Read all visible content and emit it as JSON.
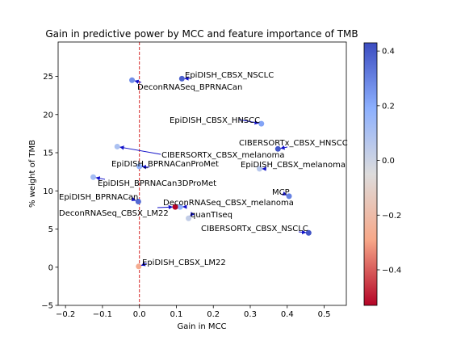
{
  "chart_data": {
    "type": "scatter",
    "title": "Gain in predictive power by MCC and feature importance of TMB",
    "xlabel": "Gain in MCC",
    "ylabel": "% weight of TMB",
    "xlim": [
      -0.22,
      0.56
    ],
    "ylim": [
      -5,
      29.5
    ],
    "xticks": [
      "−0.2",
      "−0.1",
      "0.0",
      "0.1",
      "0.2",
      "0.3",
      "0.4",
      "0.5"
    ],
    "xtick_values": [
      -0.2,
      -0.1,
      0.0,
      0.1,
      0.2,
      0.3,
      0.4,
      0.5
    ],
    "yticks": [
      "−5",
      "0",
      "5",
      "10",
      "15",
      "20",
      "25"
    ],
    "ytick_values": [
      -5,
      0,
      5,
      10,
      15,
      20,
      25
    ],
    "reference_line": {
      "axis": "x",
      "value": 0.0,
      "color": "#d62728",
      "style": "dashed"
    },
    "colorbar": {
      "colormap": "coolwarm",
      "vmin": -0.53,
      "vmax": 0.43,
      "ticks": [
        "−0.4",
        "−0.2",
        "0.0",
        "0.2",
        "0.4"
      ],
      "tick_values": [
        -0.4,
        -0.2,
        0.0,
        0.2,
        0.4
      ]
    },
    "points": [
      {
        "label": "EpiDISH_CBSX_NSCLC",
        "x": 0.115,
        "y": 24.7,
        "c": 0.38
      },
      {
        "label": "DeconRNASeq_BPRNACan",
        "x": -0.02,
        "y": 24.5,
        "c": 0.27
      },
      {
        "label": "EpiDISH_CBSX_HNSCC",
        "x": 0.33,
        "y": 18.8,
        "c": 0.22
      },
      {
        "label": "CIBERSORTx_CBSX_HNSCC",
        "x": 0.375,
        "y": 15.5,
        "c": 0.4
      },
      {
        "label": "CIBERSORTx_CBSX_melanoma",
        "x": -0.06,
        "y": 15.8,
        "c": 0.1
      },
      {
        "label": "EpiDISH_BPRNACanProMet",
        "x": 0.0,
        "y": 13.2,
        "c": 0.18
      },
      {
        "label": "EpiDISH_CBSX_melanoma",
        "x": 0.325,
        "y": 12.9,
        "c": 0.06
      },
      {
        "label": "EpiDISH_BPRNACan3DProMet",
        "x": -0.125,
        "y": 11.8,
        "c": 0.12
      },
      {
        "label": "MCP",
        "x": 0.405,
        "y": 9.3,
        "c": 0.3
      },
      {
        "label": "EpiDISH_BPRNACan",
        "x": -0.003,
        "y": 8.6,
        "c": 0.36
      },
      {
        "label": "DeconRNASeq_CBSX_melanoma",
        "x": 0.11,
        "y": 7.9,
        "c": 0.18
      },
      {
        "label": "DeconRNASeq_CBSX_LM22",
        "x": 0.097,
        "y": 7.9,
        "c": -0.53
      },
      {
        "label": "quanTIseq",
        "x": 0.133,
        "y": 6.4,
        "c": 0.03
      },
      {
        "label": "CIBERSORTx_CBSX_NSCLC",
        "x": 0.458,
        "y": 4.5,
        "c": 0.41
      },
      {
        "label": "EpiDISH_CBSX_LM22",
        "x": -0.002,
        "y": 0.1,
        "c": -0.27
      }
    ]
  }
}
